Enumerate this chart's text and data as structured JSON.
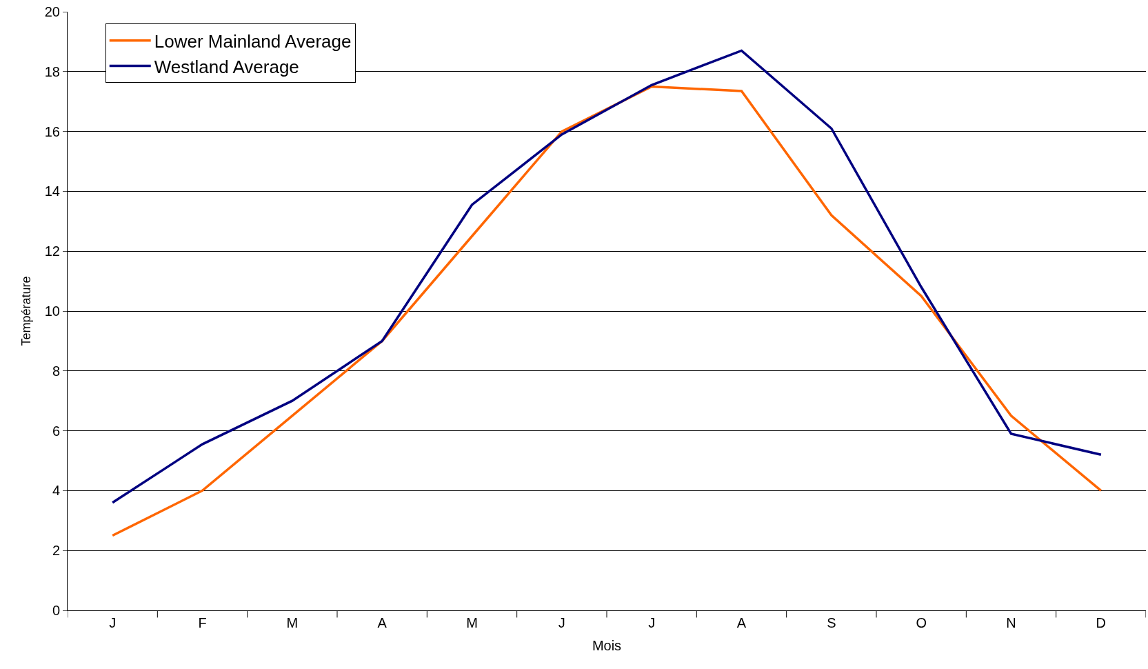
{
  "chart_data": {
    "type": "line",
    "xlabel": "Mois",
    "ylabel": "Température",
    "categories": [
      "J",
      "F",
      "M",
      "A",
      "M",
      "J",
      "J",
      "A",
      "S",
      "O",
      "N",
      "D"
    ],
    "series": [
      {
        "name": "Lower Mainland Average",
        "color": "#ff6600",
        "values": [
          2.5,
          4.0,
          6.5,
          9.0,
          12.5,
          16.0,
          17.5,
          17.35,
          13.2,
          10.5,
          6.5,
          4.0
        ]
      },
      {
        "name": "Westland Average",
        "color": "#000080",
        "values": [
          3.6,
          5.55,
          7.0,
          9.0,
          13.55,
          15.9,
          17.55,
          18.7,
          16.1,
          10.8,
          5.9,
          5.2
        ]
      }
    ],
    "ylim": [
      0,
      20
    ],
    "yticks": [
      0,
      2,
      4,
      6,
      8,
      10,
      12,
      14,
      16,
      18,
      20
    ],
    "grid": "y",
    "legend": "top left",
    "marker": "none",
    "line_style": "solid"
  }
}
